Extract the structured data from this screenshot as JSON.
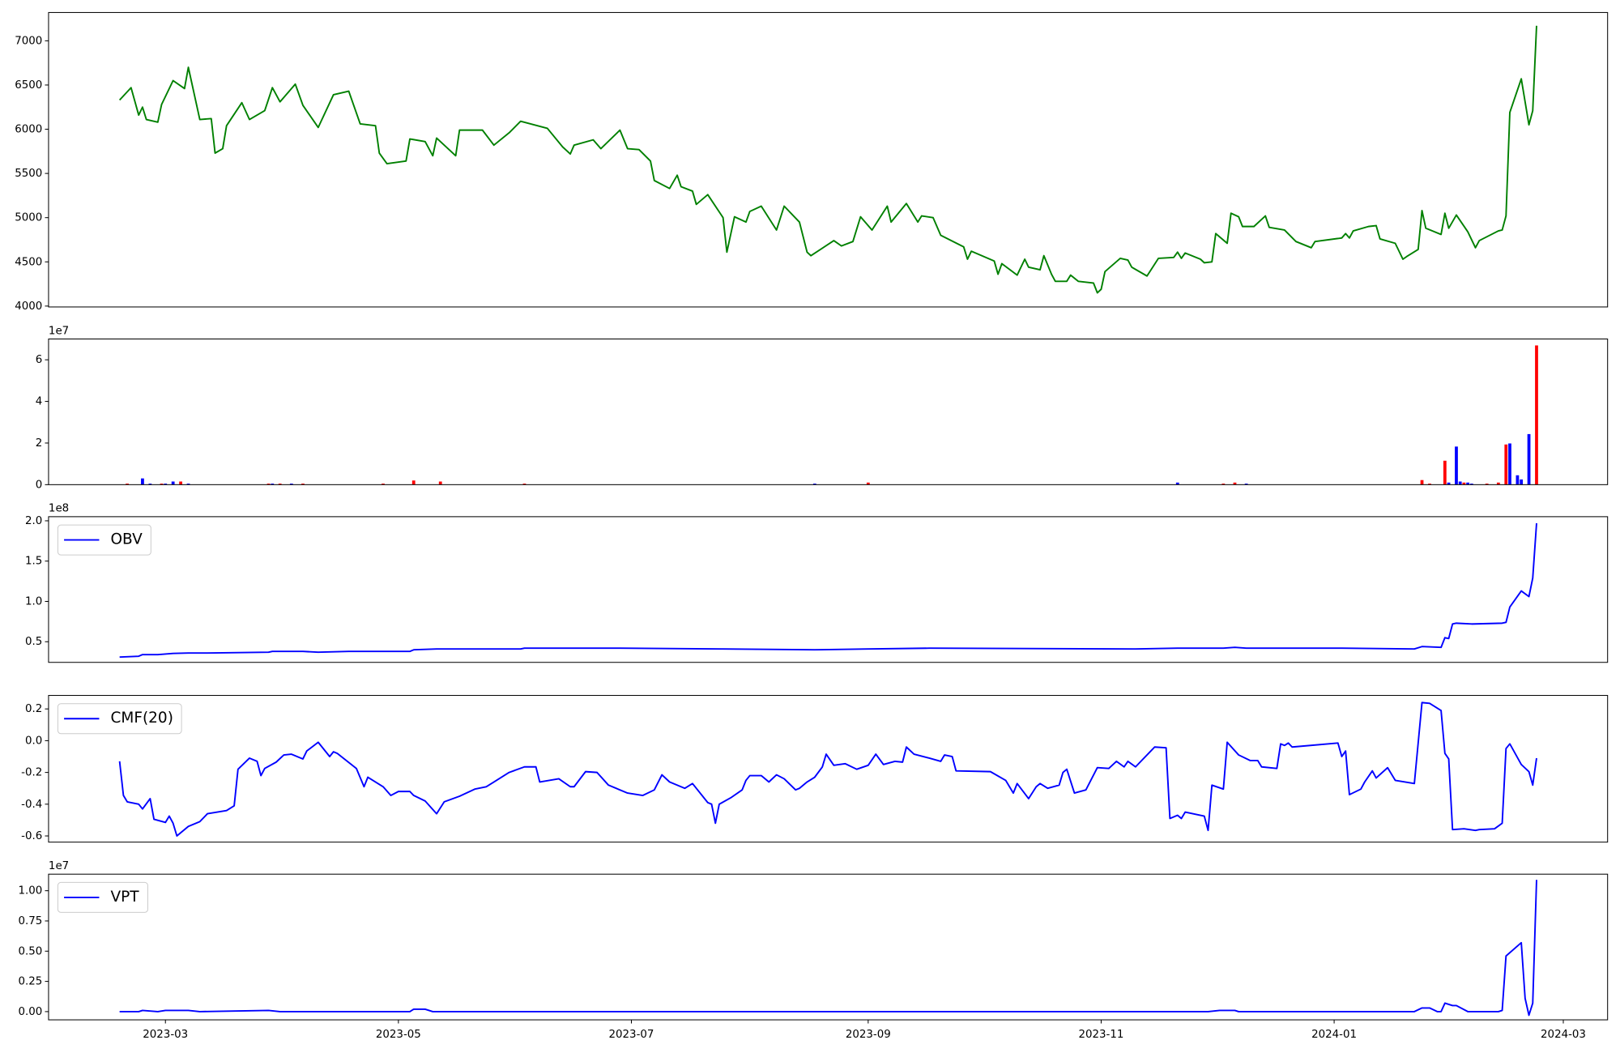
{
  "chart_data": [
    {
      "type": "line",
      "xlim": [
        19386.4,
        19794.6
      ],
      "ylim": [
        3990,
        7320
      ],
      "yticks": [
        4000,
        4500,
        5000,
        5500,
        6000,
        6500,
        7000
      ],
      "x": [
        19405,
        19408,
        19410,
        19411,
        19412,
        19415,
        19416,
        19419,
        19422,
        19423,
        19426,
        19429,
        19430,
        19432,
        19433,
        19437,
        19439,
        19443,
        19445,
        19447,
        19451,
        19453,
        19457,
        19461,
        19465,
        19468,
        19472,
        19473,
        19475,
        19480,
        19481,
        19485,
        19487,
        19488,
        19493,
        19494,
        19500,
        19503,
        19507,
        19510,
        19517,
        19521,
        19523,
        19524,
        19529,
        19531,
        19536,
        19538,
        19541,
        19544,
        19545,
        19549,
        19551,
        19552,
        19555,
        19556,
        19559,
        19563,
        19564,
        19566,
        19569,
        19570,
        19573,
        19577,
        19579,
        19583,
        19585,
        19586,
        19592,
        19594,
        19597,
        19599,
        19602,
        19606,
        19607,
        19611,
        19614,
        19615,
        19618,
        19620,
        19626,
        19627,
        19628,
        19634,
        19635,
        19636,
        19640,
        19642,
        19643,
        19646,
        19647,
        19649,
        19650,
        19653,
        19654,
        19656,
        19660,
        19661,
        19662,
        19663,
        19667,
        19669,
        19670,
        19674,
        19677,
        19681,
        19682,
        19683,
        19684,
        19688,
        19689,
        19691,
        19692,
        19695,
        19696,
        19698,
        19699,
        19702,
        19705,
        19706,
        19710,
        19713,
        19717,
        19718,
        19725,
        19726,
        19727,
        19728,
        19732,
        19734,
        19735,
        19739,
        19741,
        19742,
        19745,
        19746,
        19747,
        19751,
        19752,
        19753,
        19755,
        19758,
        19760,
        19761,
        19766,
        19767,
        19768,
        19769,
        19772,
        19774,
        19775,
        19776
      ],
      "series": [
        {
          "color": "#008000",
          "values": [
            6330,
            6470,
            6160,
            6250,
            6110,
            6080,
            6280,
            6550,
            6460,
            6700,
            6110,
            6120,
            5730,
            5780,
            6040,
            6300,
            6110,
            6210,
            6470,
            6310,
            6510,
            6270,
            6020,
            6390,
            6430,
            6060,
            6040,
            5730,
            5610,
            5640,
            5890,
            5860,
            5700,
            5900,
            5700,
            5990,
            5990,
            5820,
            5960,
            6090,
            6010,
            5800,
            5720,
            5820,
            5880,
            5780,
            5990,
            5780,
            5770,
            5640,
            5420,
            5330,
            5480,
            5350,
            5300,
            5150,
            5260,
            5000,
            4610,
            5010,
            4950,
            5070,
            5130,
            4860,
            5130,
            4950,
            4610,
            4570,
            4740,
            4680,
            4730,
            5010,
            4860,
            5130,
            4950,
            5160,
            4950,
            5020,
            5000,
            4800,
            4670,
            4530,
            4620,
            4510,
            4360,
            4480,
            4350,
            4530,
            4440,
            4410,
            4570,
            4360,
            4280,
            4280,
            4350,
            4280,
            4260,
            4150,
            4190,
            4390,
            4540,
            4520,
            4440,
            4340,
            4540,
            4550,
            4610,
            4540,
            4600,
            4530,
            4490,
            4500,
            4820,
            4710,
            5050,
            5010,
            4900,
            4900,
            5020,
            4890,
            4860,
            4730,
            4660,
            4730,
            4770,
            4820,
            4770,
            4850,
            4900,
            4910,
            4760,
            4710,
            4530,
            4560,
            4640,
            5080,
            4880,
            4810,
            5050,
            4880,
            5030,
            4840,
            4660,
            4740,
            4850,
            4860,
            5020,
            6190,
            6570,
            6050,
            6210,
            7170
          ]
        }
      ]
    },
    {
      "type": "bar",
      "xlim": [
        19386.4,
        19794.6
      ],
      "ylim": [
        0,
        7
      ],
      "yticks": [
        0,
        2,
        4,
        6
      ],
      "y_offset_label": "1e7",
      "x": [
        19407,
        19411,
        19413,
        19416,
        19417,
        19419,
        19421,
        19423,
        19444,
        19445,
        19447,
        19450,
        19453,
        19474,
        19482,
        19489,
        19511,
        19587,
        19601,
        19682,
        19694,
        19697,
        19700,
        19746,
        19748,
        19752,
        19753,
        19755,
        19756,
        19757,
        19758,
        19759,
        19763,
        19766,
        19768,
        19769,
        19771,
        19772,
        19774,
        19776
      ],
      "values": [
        0.05,
        0.3,
        0.05,
        0.05,
        0.05,
        0.15,
        0.15,
        0.05,
        0.05,
        0.05,
        0.05,
        0.05,
        0.05,
        0.05,
        0.2,
        0.15,
        0.05,
        0.05,
        0.1,
        0.1,
        0.05,
        0.1,
        0.05,
        0.22,
        0.05,
        1.15,
        0.1,
        1.83,
        0.15,
        0.1,
        0.1,
        0.05,
        0.05,
        0.1,
        1.93,
        1.98,
        0.45,
        0.25,
        2.43,
        6.69
      ],
      "colors": [
        "#ff0000",
        "#0000ff",
        "#0000ff",
        "#ff0000",
        "#0000ff",
        "#0000ff",
        "#ff0000",
        "#0000ff",
        "#ff0000",
        "#0000ff",
        "#ff0000",
        "#0000ff",
        "#ff0000",
        "#ff0000",
        "#ff0000",
        "#ff0000",
        "#ff0000",
        "#0000ff",
        "#ff0000",
        "#0000ff",
        "#ff0000",
        "#ff0000",
        "#0000ff",
        "#ff0000",
        "#ff0000",
        "#ff0000",
        "#0000ff",
        "#0000ff",
        "#0000ff",
        "#ff0000",
        "#0000ff",
        "#0000ff",
        "#ff0000",
        "#ff0000",
        "#ff0000",
        "#0000ff",
        "#0000ff",
        "#0000ff",
        "#0000ff",
        "#ff0000"
      ]
    },
    {
      "type": "line",
      "xlim": [
        19386.4,
        19794.6
      ],
      "ylim": [
        0.244,
        2.051
      ],
      "yticks": [
        0.5,
        {
          "value": 1,
          "label": "1.0"
        },
        1.5,
        {
          "value": 2,
          "label": "2.0"
        }
      ],
      "y_offset_label": "1e8",
      "legend": "upper left",
      "x": [
        19405,
        19410,
        19411,
        19415,
        19419,
        19423,
        19428,
        19444,
        19445,
        19453,
        19457,
        19465,
        19481,
        19482,
        19488,
        19510,
        19511,
        19536,
        19563,
        19587,
        19601,
        19617,
        19671,
        19682,
        19694,
        19697,
        19700,
        19725,
        19744,
        19746,
        19751,
        19752,
        19753,
        19754,
        19755,
        19759,
        19767,
        19768,
        19769,
        19772,
        19774,
        19775,
        19776
      ],
      "series": [
        {
          "name": "OBV",
          "color": "#0000ff",
          "values": [
            0.31,
            0.32,
            0.34,
            0.34,
            0.355,
            0.36,
            0.36,
            0.37,
            0.38,
            0.38,
            0.37,
            0.38,
            0.38,
            0.4,
            0.41,
            0.41,
            0.42,
            0.42,
            0.41,
            0.4,
            0.41,
            0.42,
            0.41,
            0.42,
            0.42,
            0.43,
            0.42,
            0.42,
            0.41,
            0.44,
            0.43,
            0.55,
            0.54,
            0.72,
            0.73,
            0.72,
            0.73,
            0.74,
            0.93,
            1.13,
            1.06,
            1.29,
            1.97
          ]
        }
      ]
    },
    {
      "type": "line",
      "xlim": [
        19386.4,
        19794.6
      ],
      "ylim": [
        -0.639,
        0.285
      ],
      "yticks": [
        -0.6,
        -0.4,
        -0.2,
        {
          "value": 0,
          "label": "0.0"
        },
        0.2
      ],
      "legend": "upper left",
      "x": [
        19405,
        19406,
        19407,
        19410,
        19411,
        19413,
        19414,
        19417,
        19418,
        19419,
        19420,
        19423,
        19426,
        19428,
        19433,
        19435,
        19436,
        19439,
        19441,
        19442,
        19443,
        19446,
        19448,
        19450,
        19453,
        19454,
        19457,
        19460,
        19461,
        19462,
        19467,
        19469,
        19470,
        19474,
        19476,
        19478,
        19481,
        19482,
        19485,
        19488,
        19490,
        19494,
        19498,
        19501,
        19503,
        19507,
        19511,
        19514,
        19515,
        19520,
        19523,
        19524,
        19527,
        19530,
        19533,
        19538,
        19542,
        19545,
        19547,
        19549,
        19553,
        19555,
        19559,
        19560,
        19561,
        19562,
        19565,
        19568,
        19569,
        19570,
        19573,
        19575,
        19577,
        19579,
        19582,
        19583,
        19585,
        19587,
        19589,
        19590,
        19592,
        19595,
        19598,
        19601,
        19603,
        19605,
        19608,
        19610,
        19611,
        19613,
        19617,
        19620,
        19621,
        19623,
        19624,
        19633,
        19637,
        19639,
        19640,
        19643,
        19645,
        19646,
        19648,
        19651,
        19652,
        19653,
        19655,
        19658,
        19661,
        19664,
        19666,
        19668,
        19669,
        19671,
        19675,
        19676,
        19679,
        19680,
        19682,
        19683,
        19684,
        19689,
        19690,
        19691,
        19694,
        19695,
        19698,
        19701,
        19703,
        19704,
        19708,
        19709,
        19710,
        19711,
        19712,
        19724,
        19725,
        19726,
        19727,
        19730,
        19731,
        19733,
        19734,
        19737,
        19739,
        19744,
        19746,
        19748,
        19751,
        19752,
        19753,
        19754,
        19757,
        19760,
        19761,
        19765,
        19767,
        19768,
        19769,
        19772,
        19774,
        19775,
        19776
      ],
      "series": [
        {
          "name": "CMF(20)",
          "color": "#0000ff",
          "values": [
            -0.13,
            -0.345,
            -0.385,
            -0.4,
            -0.43,
            -0.365,
            -0.495,
            -0.515,
            -0.475,
            -0.52,
            -0.6,
            -0.54,
            -0.51,
            -0.46,
            -0.44,
            -0.41,
            -0.18,
            -0.11,
            -0.13,
            -0.22,
            -0.175,
            -0.135,
            -0.09,
            -0.085,
            -0.115,
            -0.065,
            -0.01,
            -0.1,
            -0.07,
            -0.08,
            -0.175,
            -0.29,
            -0.23,
            -0.29,
            -0.345,
            -0.32,
            -0.32,
            -0.345,
            -0.38,
            -0.46,
            -0.385,
            -0.35,
            -0.305,
            -0.29,
            -0.26,
            -0.2,
            -0.165,
            -0.165,
            -0.26,
            -0.24,
            -0.29,
            -0.29,
            -0.195,
            -0.2,
            -0.28,
            -0.33,
            -0.345,
            -0.31,
            -0.215,
            -0.26,
            -0.3,
            -0.27,
            -0.39,
            -0.4,
            -0.52,
            -0.4,
            -0.36,
            -0.31,
            -0.25,
            -0.22,
            -0.22,
            -0.26,
            -0.215,
            -0.24,
            -0.31,
            -0.3,
            -0.26,
            -0.23,
            -0.165,
            -0.085,
            -0.155,
            -0.145,
            -0.18,
            -0.155,
            -0.085,
            -0.15,
            -0.13,
            -0.135,
            -0.04,
            -0.085,
            -0.11,
            -0.13,
            -0.09,
            -0.1,
            -0.19,
            -0.195,
            -0.25,
            -0.33,
            -0.27,
            -0.365,
            -0.29,
            -0.27,
            -0.3,
            -0.28,
            -0.2,
            -0.18,
            -0.33,
            -0.31,
            -0.17,
            -0.175,
            -0.13,
            -0.165,
            -0.13,
            -0.165,
            -0.065,
            -0.04,
            -0.045,
            -0.49,
            -0.47,
            -0.49,
            -0.45,
            -0.475,
            -0.565,
            -0.28,
            -0.305,
            -0.01,
            -0.09,
            -0.125,
            -0.125,
            -0.165,
            -0.175,
            -0.02,
            -0.03,
            -0.015,
            -0.04,
            -0.015,
            -0.1,
            -0.065,
            -0.34,
            -0.305,
            -0.26,
            -0.19,
            -0.235,
            -0.17,
            -0.25,
            -0.27,
            0.24,
            0.235,
            0.19,
            -0.08,
            -0.115,
            -0.56,
            -0.555,
            -0.565,
            -0.56,
            -0.555,
            -0.52,
            -0.05,
            -0.02,
            -0.15,
            -0.195,
            -0.28,
            -0.11
          ]
        }
      ]
    },
    {
      "type": "line",
      "xlim": [
        19386.4,
        19794.6
      ],
      "ylim": [
        -0.068,
        1.137
      ],
      "yticks": [
        {
          "value": 0,
          "label": "0.00"
        },
        0.25,
        {
          "value": 0.5,
          "label": "0.50"
        },
        0.75,
        {
          "value": 1,
          "label": "1.00"
        }
      ],
      "y_offset_label": "1e7",
      "legend": "upper left",
      "xticks": [
        {
          "value": 19417,
          "label": "2023-03"
        },
        {
          "value": 19478,
          "label": "2023-05"
        },
        {
          "value": 19539,
          "label": "2023-07"
        },
        {
          "value": 19601,
          "label": "2023-09"
        },
        {
          "value": 19662,
          "label": "2023-11"
        },
        {
          "value": 19723,
          "label": "2024-01"
        },
        {
          "value": 19783,
          "label": "2024-03"
        }
      ],
      "x": [
        19405,
        19410,
        19411,
        19415,
        19417,
        19423,
        19426,
        19444,
        19447,
        19481,
        19482,
        19485,
        19487,
        19690,
        19693,
        19697,
        19698,
        19744,
        19746,
        19748,
        19750,
        19751,
        19752,
        19754,
        19755,
        19758,
        19766,
        19767,
        19768,
        19772,
        19773,
        19774,
        19775,
        19776
      ],
      "series": [
        {
          "name": "VPT",
          "color": "#0000ff",
          "values": [
            0,
            0,
            0.01,
            0,
            0.01,
            0.01,
            0,
            0.01,
            0,
            0,
            0.02,
            0.02,
            0,
            0,
            0.01,
            0.01,
            0,
            0,
            0.03,
            0.03,
            0,
            0,
            0.07,
            0.05,
            0.05,
            0,
            0,
            0.01,
            0.46,
            0.57,
            0.11,
            -0.03,
            0.07,
            1.09
          ]
        }
      ]
    }
  ]
}
